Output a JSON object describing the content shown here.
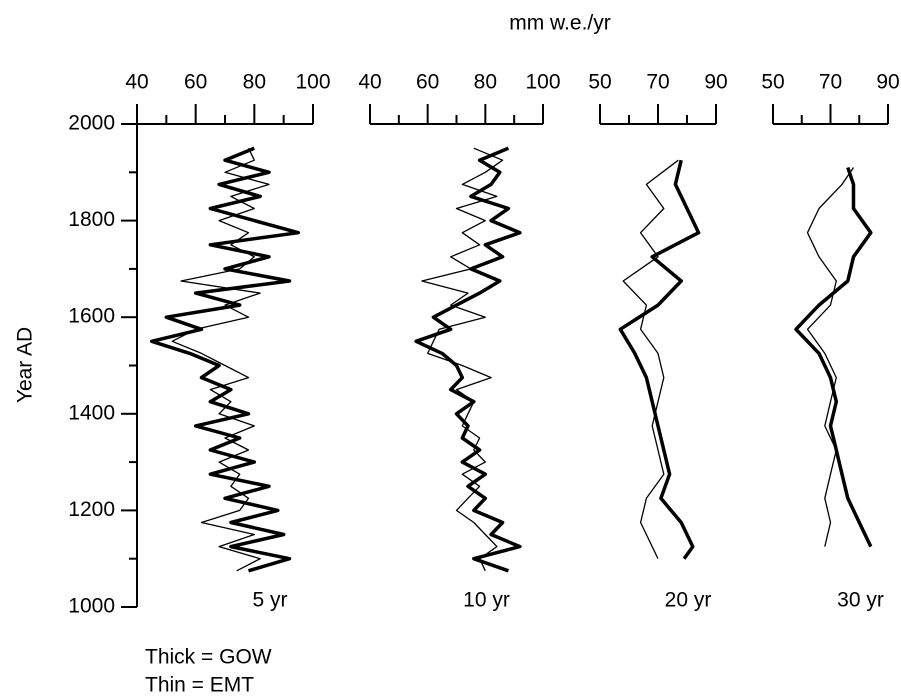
{
  "chart_data": {
    "type": "line",
    "title": "mm w.e./yr",
    "ylabel": "Year AD",
    "ylim": [
      1000,
      2000
    ],
    "yticks": [
      1000,
      1200,
      1400,
      1600,
      1800,
      2000
    ],
    "yminor": [
      1100,
      1300,
      1500,
      1700,
      1900
    ],
    "notes": [
      "Thick = GOW",
      "Thin = EMT"
    ],
    "panels": [
      {
        "label": "5 yr",
        "xlim": [
          40,
          100
        ],
        "xticks": [
          40,
          60,
          80,
          100
        ],
        "xminor": [
          50,
          70,
          90
        ],
        "y": [
          1950,
          1925,
          1900,
          1875,
          1850,
          1825,
          1800,
          1775,
          1750,
          1725,
          1700,
          1675,
          1650,
          1625,
          1600,
          1575,
          1550,
          1525,
          1500,
          1475,
          1450,
          1425,
          1400,
          1375,
          1350,
          1325,
          1300,
          1275,
          1250,
          1225,
          1200,
          1175,
          1150,
          1125,
          1100,
          1075
        ],
        "series": [
          {
            "color": "#000",
            "width": 3.5,
            "values": [
              80,
              70,
              85,
              68,
              82,
              65,
              80,
              95,
              65,
              85,
              70,
              92,
              60,
              75,
              50,
              62,
              45,
              58,
              68,
              62,
              72,
              65,
              78,
              60,
              75,
              65,
              80,
              65,
              85,
              70,
              88,
              72,
              90,
              72,
              92,
              78
            ]
          },
          {
            "color": "#000",
            "width": 1.3,
            "values": [
              78,
              80,
              70,
              85,
              72,
              80,
              68,
              78,
              72,
              80,
              75,
              55,
              82,
              70,
              78,
              60,
              52,
              62,
              70,
              78,
              65,
              72,
              68,
              80,
              70,
              78,
              68,
              75,
              72,
              78,
              75,
              62,
              80,
              68,
              82,
              74
            ]
          }
        ]
      },
      {
        "label": "10 yr",
        "xlim": [
          40,
          100
        ],
        "xticks": [
          40,
          60,
          80,
          100
        ],
        "xminor": [
          50,
          70,
          90
        ],
        "y": [
          1950,
          1925,
          1900,
          1875,
          1850,
          1825,
          1800,
          1775,
          1750,
          1725,
          1700,
          1675,
          1650,
          1625,
          1600,
          1575,
          1550,
          1525,
          1500,
          1475,
          1450,
          1425,
          1400,
          1375,
          1350,
          1325,
          1300,
          1275,
          1250,
          1225,
          1200,
          1175,
          1150,
          1125,
          1100,
          1075
        ],
        "series": [
          {
            "color": "#000",
            "width": 3.5,
            "values": [
              88,
              78,
              85,
              82,
              75,
              88,
              82,
              92,
              80,
              86,
              75,
              85,
              78,
              70,
              62,
              68,
              56,
              65,
              70,
              72,
              68,
              76,
              70,
              74,
              72,
              78,
              72,
              80,
              74,
              80,
              76,
              86,
              82,
              92,
              76,
              88
            ]
          },
          {
            "color": "#000",
            "width": 1.3,
            "values": [
              76,
              86,
              80,
              72,
              84,
              70,
              80,
              72,
              78,
              68,
              75,
              58,
              74,
              68,
              80,
              64,
              62,
              60,
              72,
              82,
              70,
              76,
              74,
              72,
              78,
              76,
              80,
              72,
              78,
              74,
              70,
              76,
              80,
              84,
              78,
              80
            ]
          }
        ]
      },
      {
        "label": "20 yr",
        "xlim": [
          50,
          90
        ],
        "xticks": [
          50,
          70,
          90
        ],
        "xminor": [
          60,
          80
        ],
        "y": [
          1925,
          1875,
          1825,
          1775,
          1725,
          1675,
          1625,
          1575,
          1525,
          1475,
          1425,
          1375,
          1325,
          1275,
          1225,
          1175,
          1125,
          1100
        ],
        "series": [
          {
            "color": "#000",
            "width": 3.5,
            "values": [
              78,
              76,
              80,
              84,
              68,
              78,
              70,
              57,
              62,
              66,
              68,
              70,
              72,
              74,
              71,
              78,
              82,
              79
            ]
          },
          {
            "color": "#000",
            "width": 1.3,
            "values": [
              77,
              66,
              72,
              64,
              70,
              58,
              66,
              64,
              70,
              72,
              70,
              68,
              70,
              72,
              66,
              64,
              68,
              70
            ]
          }
        ]
      },
      {
        "label": "30 yr",
        "xlim": [
          50,
          90
        ],
        "xticks": [
          50,
          70,
          90
        ],
        "xminor": [
          60,
          80
        ],
        "y": [
          1910,
          1875,
          1825,
          1775,
          1725,
          1675,
          1625,
          1575,
          1525,
          1475,
          1425,
          1375,
          1325,
          1275,
          1225,
          1175,
          1125
        ],
        "series": [
          {
            "color": "#000",
            "width": 3.5,
            "values": [
              76,
              78,
              78,
              84,
              78,
              76,
              66,
              58,
              66,
              70,
              72,
              70,
              72,
              74,
              76,
              80,
              84
            ]
          },
          {
            "color": "#000",
            "width": 1.3,
            "values": [
              78,
              74,
              66,
              62,
              66,
              72,
              70,
              62,
              68,
              72,
              70,
              68,
              72,
              70,
              68,
              70,
              68
            ]
          }
        ]
      }
    ]
  }
}
